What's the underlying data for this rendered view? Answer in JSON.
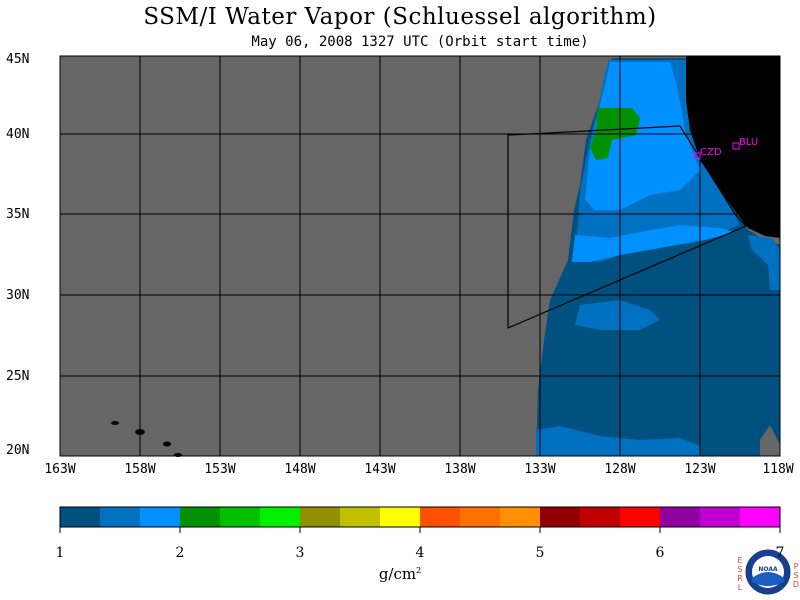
{
  "title": "SSM/I Water Vapor (Schluessel algorithm)",
  "subtitle": "May 06, 2008  1327 UTC  (Orbit start time)",
  "map": {
    "lat_labels": [
      "45N",
      "40N",
      "35N",
      "30N",
      "25N",
      "20N"
    ],
    "lon_labels": [
      "163W",
      "158W",
      "153W",
      "148W",
      "143W",
      "138W",
      "133W",
      "128W",
      "123W",
      "118W"
    ],
    "stations": [
      "CZD",
      "BLU"
    ],
    "colors": {
      "no_data": "#666666",
      "land": "#000000",
      "coast_outline": "#000000",
      "station": "#ff00ff"
    }
  },
  "colorbar": {
    "ticks": [
      "1",
      "2",
      "3",
      "4",
      "5",
      "6",
      "7"
    ],
    "units": "g/cm",
    "units_exp": "2",
    "colors": [
      "#005080",
      "#0070c0",
      "#0090ff",
      "#009000",
      "#00c000",
      "#00f000",
      "#909000",
      "#c0c000",
      "#ffff00",
      "#ff5000",
      "#ff7000",
      "#ff9000",
      "#900000",
      "#c00000",
      "#ff0000",
      "#9000a0",
      "#c000d0",
      "#ff00ff"
    ]
  },
  "logo": {
    "left_letters": [
      "E",
      "S",
      "R",
      "L"
    ],
    "center": "NOAA",
    "right_letters": [
      "P",
      "S",
      "D"
    ]
  }
}
